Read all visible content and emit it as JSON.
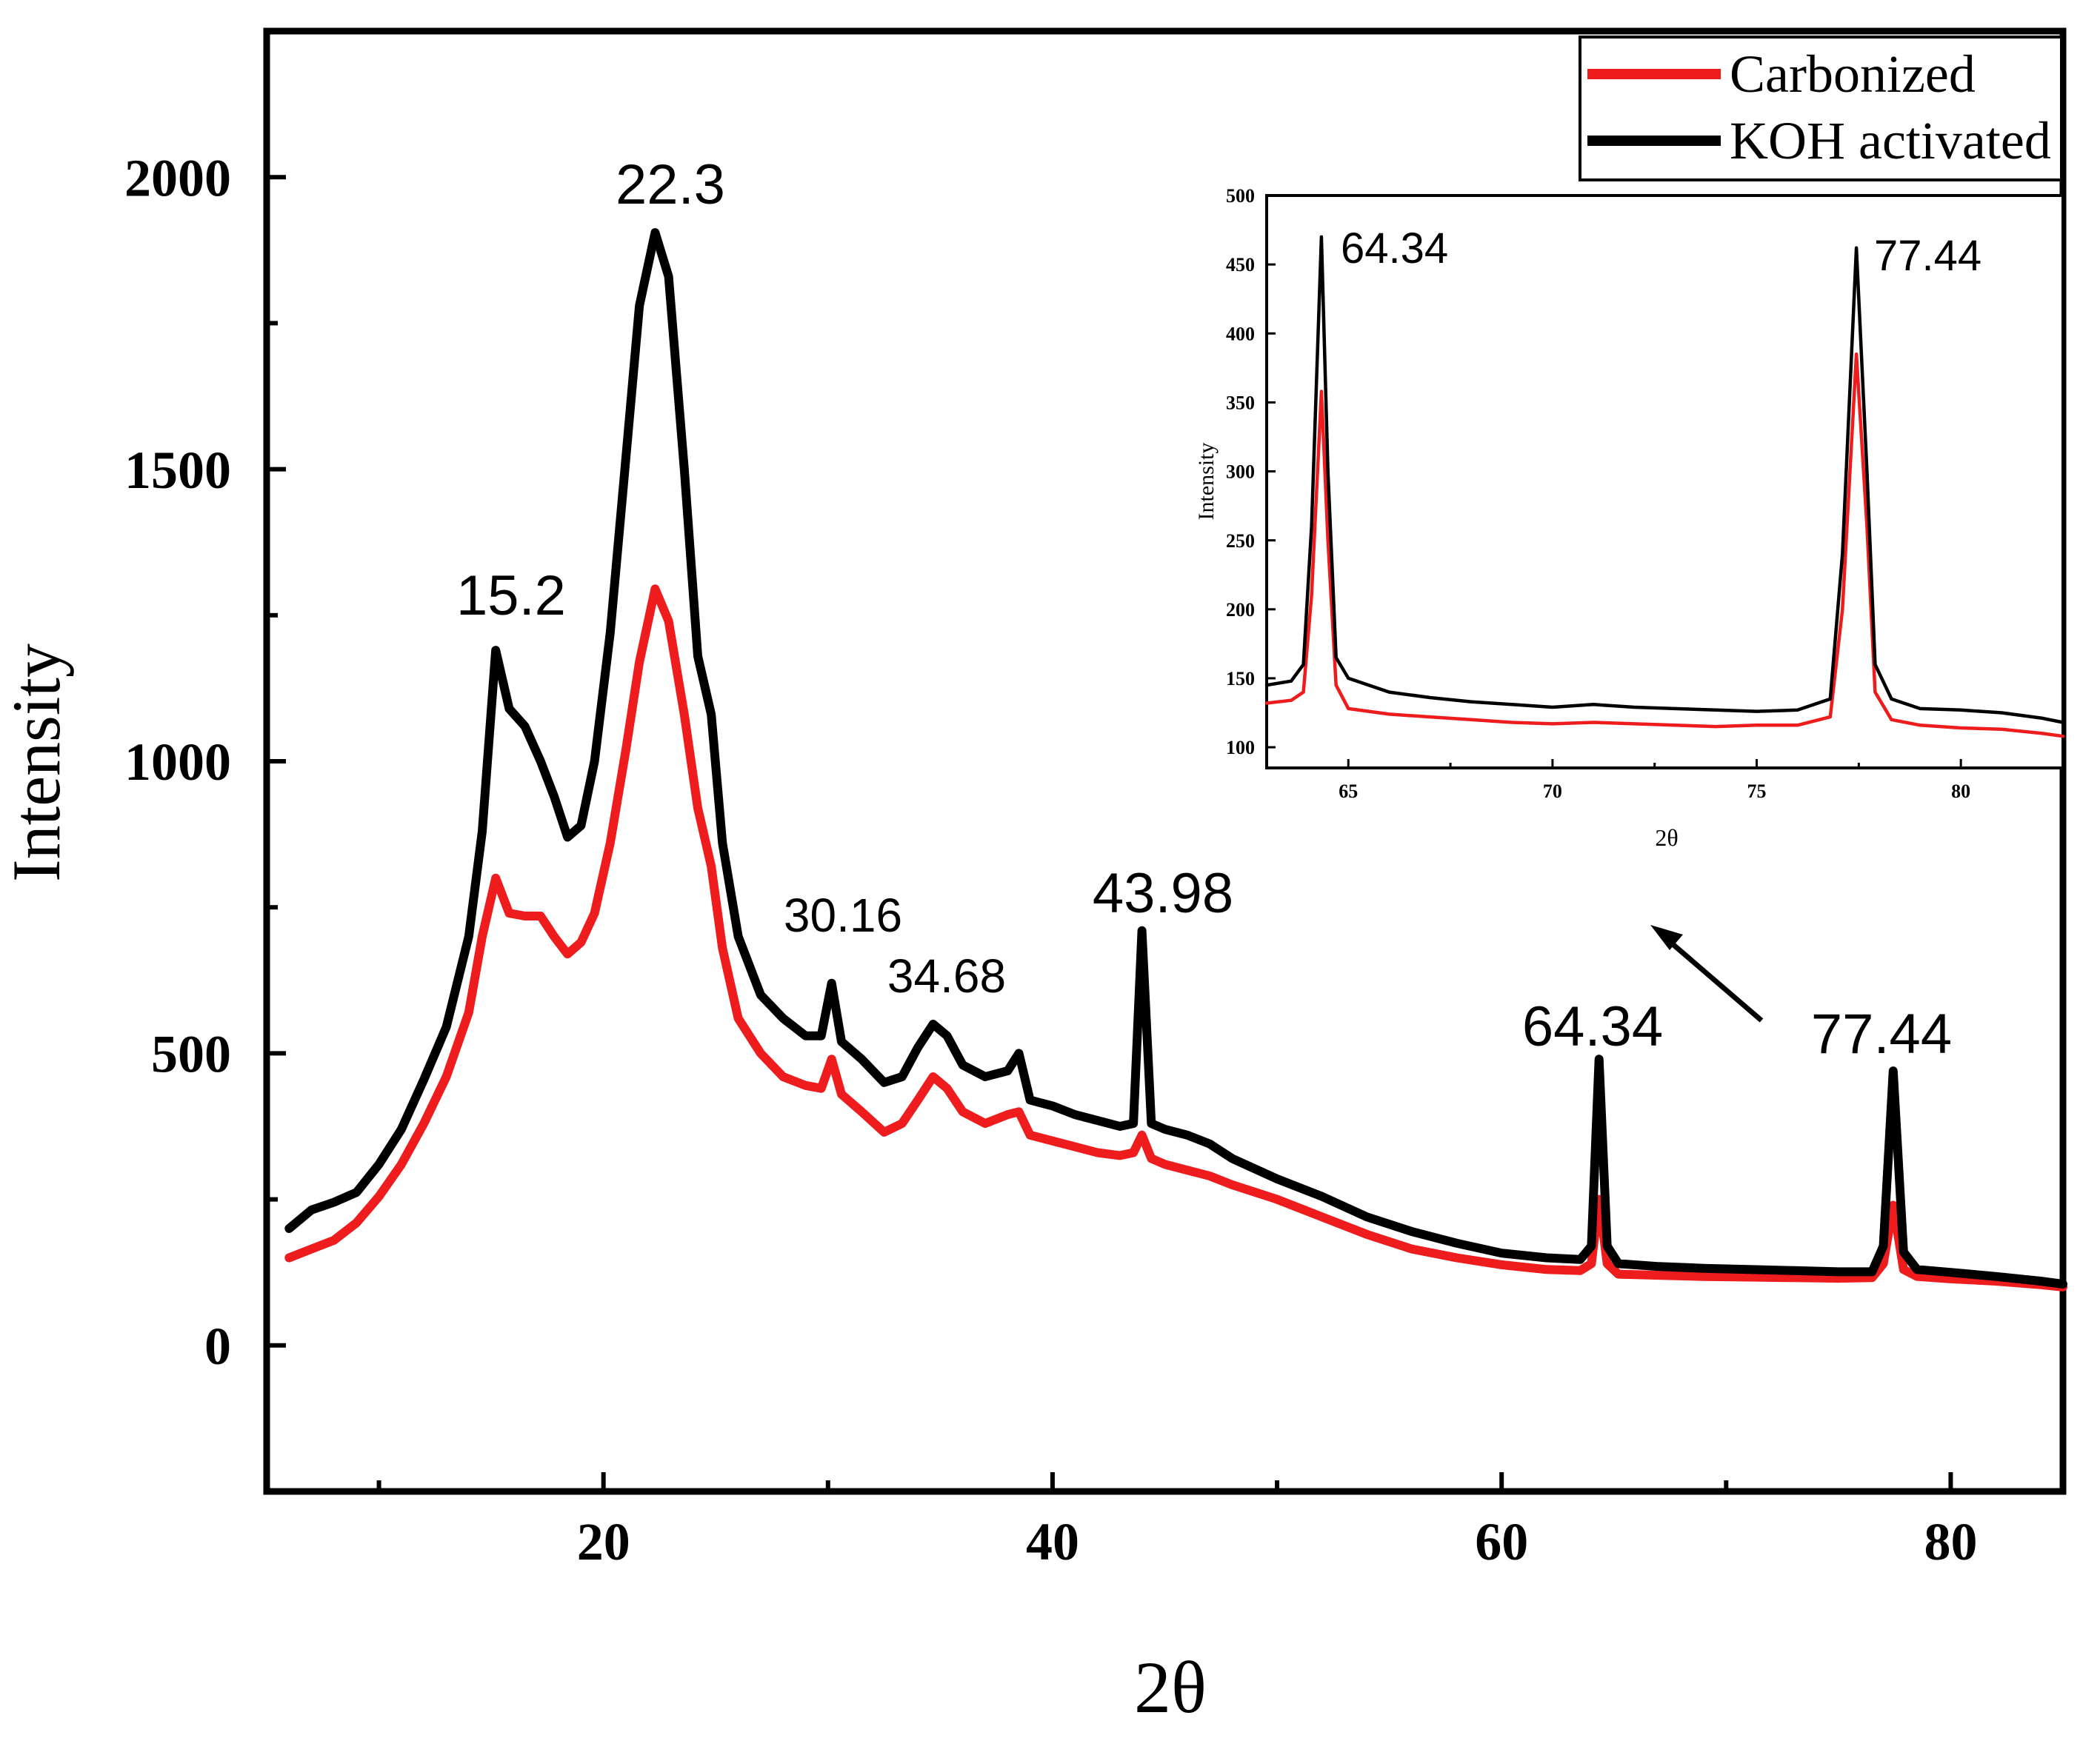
{
  "chart_data": [
    {
      "type": "line",
      "title": "",
      "xlabel": "2θ",
      "ylabel": "Intensity",
      "xlim": [
        5,
        85
      ],
      "ylim": [
        -250,
        2250
      ],
      "xticks": [
        20,
        40,
        60,
        80
      ],
      "yticks": [
        0,
        500,
        1000,
        1500,
        2000
      ],
      "legend": {
        "placement": "top-right",
        "entries": [
          "Carbonized",
          "KOH activated"
        ]
      },
      "series": [
        {
          "name": "KOH activated",
          "color": "#000000",
          "points": [
            [
              6,
              200
            ],
            [
              7,
              232
            ],
            [
              8,
              245
            ],
            [
              9,
              262
            ],
            [
              10,
              310
            ],
            [
              11,
              370
            ],
            [
              12,
              455
            ],
            [
              13,
              545
            ],
            [
              14,
              700
            ],
            [
              14.6,
              880
            ],
            [
              15.2,
              1190
            ],
            [
              15.8,
              1090
            ],
            [
              16.5,
              1060
            ],
            [
              17.2,
              1000
            ],
            [
              17.8,
              940
            ],
            [
              18.4,
              870
            ],
            [
              19,
              890
            ],
            [
              19.6,
              1000
            ],
            [
              20.3,
              1220
            ],
            [
              21,
              1520
            ],
            [
              21.6,
              1780
            ],
            [
              22.3,
              1905
            ],
            [
              22.9,
              1830
            ],
            [
              23.6,
              1500
            ],
            [
              24.2,
              1180
            ],
            [
              24.8,
              1080
            ],
            [
              25.3,
              860
            ],
            [
              26,
              700
            ],
            [
              27,
              600
            ],
            [
              28,
              560
            ],
            [
              29,
              530
            ],
            [
              29.7,
              530
            ],
            [
              30.16,
              620
            ],
            [
              30.6,
              520
            ],
            [
              31.5,
              490
            ],
            [
              32.5,
              450
            ],
            [
              33.3,
              460
            ],
            [
              34,
              510
            ],
            [
              34.68,
              550
            ],
            [
              35.3,
              530
            ],
            [
              36,
              480
            ],
            [
              37,
              460
            ],
            [
              38,
              470
            ],
            [
              38.5,
              500
            ],
            [
              39,
              420
            ],
            [
              40,
              410
            ],
            [
              41,
              395
            ],
            [
              42,
              385
            ],
            [
              43,
              375
            ],
            [
              43.6,
              380
            ],
            [
              43.98,
              710
            ],
            [
              44.4,
              380
            ],
            [
              45,
              370
            ],
            [
              46,
              360
            ],
            [
              47,
              345
            ],
            [
              48,
              320
            ],
            [
              50,
              285
            ],
            [
              52,
              255
            ],
            [
              54,
              220
            ],
            [
              56,
              195
            ],
            [
              58,
              175
            ],
            [
              60,
              158
            ],
            [
              62,
              150
            ],
            [
              63.5,
              147
            ],
            [
              64.0,
              170
            ],
            [
              64.34,
              490
            ],
            [
              64.7,
              170
            ],
            [
              65.2,
              140
            ],
            [
              67,
              135
            ],
            [
              69,
              132
            ],
            [
              71,
              130
            ],
            [
              73,
              128
            ],
            [
              75,
              126
            ],
            [
              76.5,
              126
            ],
            [
              77.0,
              170
            ],
            [
              77.44,
              470
            ],
            [
              77.9,
              160
            ],
            [
              78.5,
              130
            ],
            [
              80,
              125
            ],
            [
              82,
              118
            ],
            [
              84,
              110
            ],
            [
              85,
              105
            ]
          ]
        },
        {
          "name": "Carbonized",
          "color": "#ee1c1c",
          "points": [
            [
              6,
              150
            ],
            [
              7,
              165
            ],
            [
              8,
              180
            ],
            [
              9,
              210
            ],
            [
              10,
              255
            ],
            [
              11,
              310
            ],
            [
              12,
              380
            ],
            [
              13,
              460
            ],
            [
              14,
              570
            ],
            [
              14.6,
              700
            ],
            [
              15.2,
              800
            ],
            [
              15.8,
              740
            ],
            [
              16.5,
              735
            ],
            [
              17.2,
              735
            ],
            [
              17.8,
              700
            ],
            [
              18.4,
              670
            ],
            [
              19,
              690
            ],
            [
              19.6,
              740
            ],
            [
              20.3,
              860
            ],
            [
              21,
              1020
            ],
            [
              21.6,
              1170
            ],
            [
              22.3,
              1295
            ],
            [
              22.9,
              1240
            ],
            [
              23.6,
              1080
            ],
            [
              24.2,
              920
            ],
            [
              24.8,
              820
            ],
            [
              25.3,
              680
            ],
            [
              26,
              560
            ],
            [
              27,
              500
            ],
            [
              28,
              460
            ],
            [
              29,
              445
            ],
            [
              29.7,
              440
            ],
            [
              30.16,
              490
            ],
            [
              30.6,
              430
            ],
            [
              31.5,
              400
            ],
            [
              32.5,
              365
            ],
            [
              33.3,
              380
            ],
            [
              34,
              420
            ],
            [
              34.68,
              460
            ],
            [
              35.3,
              440
            ],
            [
              36,
              400
            ],
            [
              37,
              380
            ],
            [
              38,
              395
            ],
            [
              38.5,
              400
            ],
            [
              39,
              360
            ],
            [
              40,
              350
            ],
            [
              41,
              340
            ],
            [
              42,
              330
            ],
            [
              43,
              325
            ],
            [
              43.6,
              330
            ],
            [
              43.98,
              360
            ],
            [
              44.4,
              320
            ],
            [
              45,
              310
            ],
            [
              46,
              300
            ],
            [
              47,
              290
            ],
            [
              48,
              275
            ],
            [
              50,
              250
            ],
            [
              52,
              220
            ],
            [
              54,
              190
            ],
            [
              56,
              165
            ],
            [
              58,
              150
            ],
            [
              60,
              138
            ],
            [
              62,
              130
            ],
            [
              63.5,
              128
            ],
            [
              64.0,
              140
            ],
            [
              64.34,
              250
            ],
            [
              64.7,
              140
            ],
            [
              65.2,
              122
            ],
            [
              67,
              120
            ],
            [
              69,
              118
            ],
            [
              71,
              117
            ],
            [
              73,
              116
            ],
            [
              75,
              115
            ],
            [
              76.5,
              116
            ],
            [
              77.0,
              140
            ],
            [
              77.44,
              240
            ],
            [
              77.9,
              130
            ],
            [
              78.5,
              118
            ],
            [
              80,
              114
            ],
            [
              82,
              110
            ],
            [
              84,
              104
            ],
            [
              85,
              100
            ]
          ]
        }
      ],
      "annotations": [
        "15.2",
        "22.3",
        "30.16",
        "34.68",
        "43.98",
        "64.34",
        "77.44"
      ]
    },
    {
      "type": "line",
      "title": "",
      "xlabel": "2θ",
      "ylabel": "Intensity",
      "xlim": [
        63,
        82.5
      ],
      "ylim": [
        85,
        500
      ],
      "xticks": [
        65,
        70,
        75,
        80
      ],
      "yticks": [
        100,
        150,
        200,
        250,
        300,
        350,
        400,
        450,
        500
      ],
      "series": [
        {
          "name": "KOH activated",
          "color": "#000000",
          "points": [
            [
              63,
              145
            ],
            [
              63.6,
              148
            ],
            [
              63.9,
              160
            ],
            [
              64.1,
              260
            ],
            [
              64.34,
              470
            ],
            [
              64.5,
              300
            ],
            [
              64.7,
              165
            ],
            [
              65,
              150
            ],
            [
              66,
              140
            ],
            [
              67,
              136
            ],
            [
              68,
              133
            ],
            [
              69,
              131
            ],
            [
              70,
              129
            ],
            [
              71,
              131
            ],
            [
              72,
              129
            ],
            [
              73,
              128
            ],
            [
              74,
              127
            ],
            [
              75,
              126
            ],
            [
              76,
              127
            ],
            [
              76.8,
              135
            ],
            [
              77.1,
              240
            ],
            [
              77.44,
              462
            ],
            [
              77.7,
              300
            ],
            [
              77.9,
              160
            ],
            [
              78.3,
              135
            ],
            [
              79,
              128
            ],
            [
              80,
              127
            ],
            [
              81,
              125
            ],
            [
              82,
              121
            ],
            [
              82.5,
              118
            ]
          ]
        },
        {
          "name": "Carbonized",
          "color": "#ee1c1c",
          "points": [
            [
              63,
              132
            ],
            [
              63.6,
              134
            ],
            [
              63.9,
              140
            ],
            [
              64.1,
              210
            ],
            [
              64.34,
              358
            ],
            [
              64.5,
              250
            ],
            [
              64.7,
              145
            ],
            [
              65,
              128
            ],
            [
              66,
              124
            ],
            [
              67,
              122
            ],
            [
              68,
              120
            ],
            [
              69,
              118
            ],
            [
              70,
              117
            ],
            [
              71,
              118
            ],
            [
              72,
              117
            ],
            [
              73,
              116
            ],
            [
              74,
              115
            ],
            [
              75,
              116
            ],
            [
              76,
              116
            ],
            [
              76.8,
              122
            ],
            [
              77.1,
              200
            ],
            [
              77.44,
              385
            ],
            [
              77.7,
              260
            ],
            [
              77.9,
              140
            ],
            [
              78.3,
              120
            ],
            [
              79,
              116
            ],
            [
              80,
              114
            ],
            [
              81,
              113
            ],
            [
              82,
              110
            ],
            [
              82.5,
              108
            ]
          ]
        }
      ],
      "annotations": [
        "64.34",
        "77.44"
      ]
    }
  ]
}
